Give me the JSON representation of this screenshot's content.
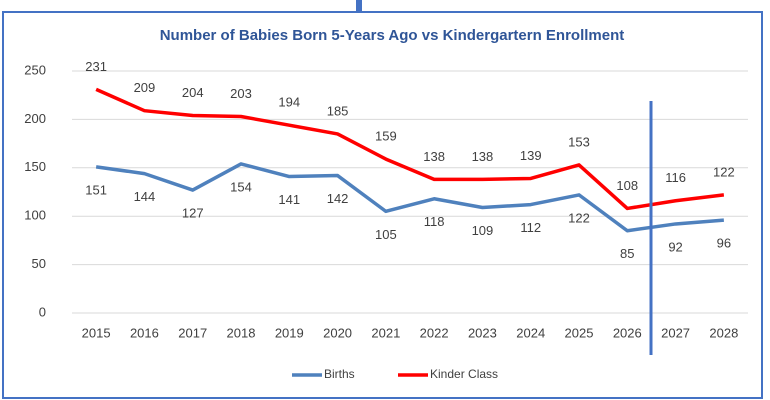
{
  "chart_data": {
    "type": "line",
    "title": "Number of Babies Born 5-Years Ago vs Kindergartern Enrollment",
    "categories": [
      "2015",
      "2016",
      "2017",
      "2018",
      "2019",
      "2020",
      "2021",
      "2022",
      "2023",
      "2024",
      "2025",
      "2026",
      "2027",
      "2028"
    ],
    "series": [
      {
        "name": "Births",
        "color": "#4f81bd",
        "values": [
          151,
          144,
          127,
          154,
          141,
          142,
          105,
          118,
          109,
          112,
          122,
          85,
          92,
          96
        ]
      },
      {
        "name": "Kinder Class",
        "color": "#ff0000",
        "values": [
          231,
          209,
          204,
          203,
          194,
          185,
          159,
          138,
          138,
          139,
          153,
          108,
          116,
          122
        ]
      }
    ],
    "ylim": [
      0,
      250
    ],
    "yticks": [
      0,
      50,
      100,
      150,
      200,
      250
    ],
    "grid": true,
    "legend": "bottom"
  }
}
